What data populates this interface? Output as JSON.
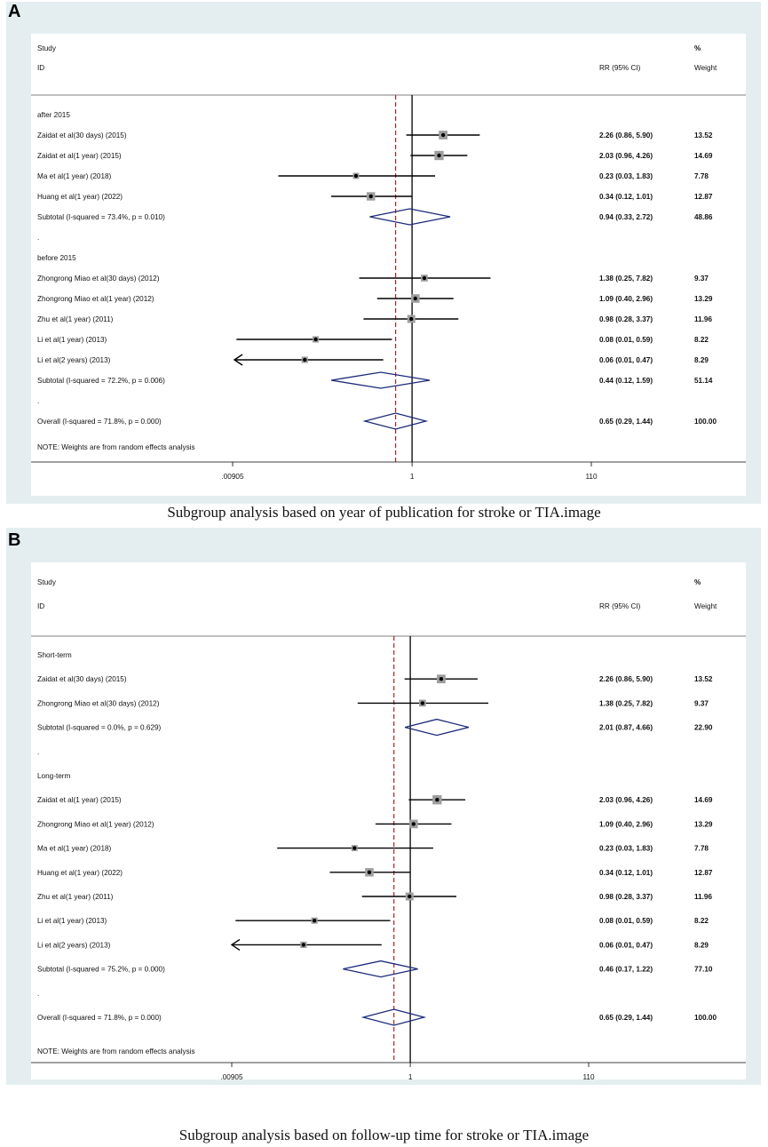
{
  "chart_data": [
    {
      "type": "forest",
      "panel_label": "A",
      "caption": "Subgroup analysis based on year of publication for stroke or TIA.image",
      "header": {
        "study": "Study",
        "id": "ID",
        "rr": "RR (95% CI)",
        "pct": "%",
        "weight": "Weight"
      },
      "x_scale": "log",
      "x_ticks": [
        {
          "value": 0.00905,
          "label": ".00905"
        },
        {
          "value": 1,
          "label": "1"
        },
        {
          "value": 110,
          "label": "110"
        }
      ],
      "null_line": 1,
      "overall_line": 0.65,
      "note": "NOTE: Weights are from random effects analysis",
      "rows": [
        {
          "kind": "group",
          "label": "after 2015"
        },
        {
          "kind": "study",
          "label": "Zaidat et al(30 days)  (2015)",
          "rr": 2.26,
          "lo": 0.86,
          "hi": 5.9,
          "ci_text": "2.26 (0.86, 5.90)",
          "weight": "13.52"
        },
        {
          "kind": "study",
          "label": "Zaidat et al(1 year)  (2015)",
          "rr": 2.03,
          "lo": 0.96,
          "hi": 4.26,
          "ci_text": "2.03 (0.96, 4.26)",
          "weight": "14.69"
        },
        {
          "kind": "study",
          "label": "Ma et al(1 year)  (2018)",
          "rr": 0.23,
          "lo": 0.03,
          "hi": 1.83,
          "ci_text": "0.23 (0.03, 1.83)",
          "weight": "7.78"
        },
        {
          "kind": "study",
          "label": "Huang et al(1 year)  (2022)",
          "rr": 0.34,
          "lo": 0.12,
          "hi": 1.01,
          "ci_text": "0.34 (0.12, 1.01)",
          "weight": "12.87"
        },
        {
          "kind": "subtotal",
          "label": "Subtotal  (I-squared = 73.4%, p = 0.010)",
          "rr": 0.94,
          "lo": 0.33,
          "hi": 2.72,
          "ci_text": "0.94 (0.33, 2.72)",
          "weight": "48.86"
        },
        {
          "kind": "dot",
          "label": "."
        },
        {
          "kind": "group",
          "label": "before 2015"
        },
        {
          "kind": "study",
          "label": "Zhongrong Miao et al(30 days)  (2012)",
          "rr": 1.38,
          "lo": 0.25,
          "hi": 7.82,
          "ci_text": "1.38 (0.25, 7.82)",
          "weight": "9.37"
        },
        {
          "kind": "study",
          "label": "Zhongrong Miao et al(1 year)  (2012)",
          "rr": 1.09,
          "lo": 0.4,
          "hi": 2.96,
          "ci_text": "1.09 (0.40, 2.96)",
          "weight": "13.29"
        },
        {
          "kind": "study",
          "label": "Zhu et al(1 year)  (2011)",
          "rr": 0.98,
          "lo": 0.28,
          "hi": 3.37,
          "ci_text": "0.98 (0.28, 3.37)",
          "weight": "11.96"
        },
        {
          "kind": "study",
          "label": "Li et al(1 year)  (2013)",
          "rr": 0.08,
          "lo": 0.01,
          "hi": 0.59,
          "ci_text": "0.08 (0.01, 0.59)",
          "weight": "8.22"
        },
        {
          "kind": "study",
          "label": "Li et al(2 years)  (2013)",
          "rr": 0.06,
          "lo": 0.01,
          "hi": 0.47,
          "ci_text": "0.06 (0.01, 0.47)",
          "weight": "8.29",
          "arrow_left": true
        },
        {
          "kind": "subtotal",
          "label": "Subtotal  (I-squared = 72.2%, p = 0.006)",
          "rr": 0.44,
          "lo": 0.12,
          "hi": 1.59,
          "ci_text": "0.44 (0.12, 1.59)",
          "weight": "51.14"
        },
        {
          "kind": "dot",
          "label": "."
        },
        {
          "kind": "overall",
          "label": "Overall  (I-squared = 71.8%, p = 0.000)",
          "rr": 0.65,
          "lo": 0.29,
          "hi": 1.44,
          "ci_text": "0.65 (0.29, 1.44)",
          "weight": "100.00"
        }
      ]
    },
    {
      "type": "forest",
      "panel_label": "B",
      "caption": "Subgroup analysis based on follow-up time for stroke or TIA.image",
      "header": {
        "study": "Study",
        "id": "ID",
        "rr": "RR (95% CI)",
        "pct": "%",
        "weight": "Weight"
      },
      "x_scale": "log",
      "x_ticks": [
        {
          "value": 0.00905,
          "label": ".00905"
        },
        {
          "value": 1,
          "label": "1"
        },
        {
          "value": 110,
          "label": "110"
        }
      ],
      "null_line": 1,
      "overall_line": 0.65,
      "note": "NOTE: Weights are from random effects analysis",
      "rows": [
        {
          "kind": "group",
          "label": "Short-term"
        },
        {
          "kind": "study",
          "label": "Zaidat et al(30 days)  (2015)",
          "rr": 2.26,
          "lo": 0.86,
          "hi": 5.9,
          "ci_text": "2.26 (0.86, 5.90)",
          "weight": "13.52"
        },
        {
          "kind": "study",
          "label": "Zhongrong Miao et al(30 days)  (2012)",
          "rr": 1.38,
          "lo": 0.25,
          "hi": 7.82,
          "ci_text": "1.38 (0.25, 7.82)",
          "weight": "9.37"
        },
        {
          "kind": "subtotal",
          "label": "Subtotal  (I-squared = 0.0%, p = 0.629)",
          "rr": 2.01,
          "lo": 0.87,
          "hi": 4.66,
          "ci_text": "2.01 (0.87, 4.66)",
          "weight": "22.90"
        },
        {
          "kind": "dot",
          "label": "."
        },
        {
          "kind": "group",
          "label": "Long-term"
        },
        {
          "kind": "study",
          "label": "Zaidat et al(1 year)  (2015)",
          "rr": 2.03,
          "lo": 0.96,
          "hi": 4.26,
          "ci_text": "2.03 (0.96, 4.26)",
          "weight": "14.69"
        },
        {
          "kind": "study",
          "label": "Zhongrong Miao et al(1 year)  (2012)",
          "rr": 1.09,
          "lo": 0.4,
          "hi": 2.96,
          "ci_text": "1.09 (0.40, 2.96)",
          "weight": "13.29"
        },
        {
          "kind": "study",
          "label": "Ma et al(1 year)  (2018)",
          "rr": 0.23,
          "lo": 0.03,
          "hi": 1.83,
          "ci_text": "0.23 (0.03, 1.83)",
          "weight": "7.78"
        },
        {
          "kind": "study",
          "label": "Huang et al(1 year)  (2022)",
          "rr": 0.34,
          "lo": 0.12,
          "hi": 1.01,
          "ci_text": "0.34 (0.12, 1.01)",
          "weight": "12.87"
        },
        {
          "kind": "study",
          "label": "Zhu et al(1 year)  (2011)",
          "rr": 0.98,
          "lo": 0.28,
          "hi": 3.37,
          "ci_text": "0.98 (0.28, 3.37)",
          "weight": "11.96"
        },
        {
          "kind": "study",
          "label": "Li et al(1 year)  (2013)",
          "rr": 0.08,
          "lo": 0.01,
          "hi": 0.59,
          "ci_text": "0.08 (0.01, 0.59)",
          "weight": "8.22"
        },
        {
          "kind": "study",
          "label": "Li et al(2 years)  (2013)",
          "rr": 0.06,
          "lo": 0.01,
          "hi": 0.47,
          "ci_text": "0.06 (0.01, 0.47)",
          "weight": "8.29",
          "arrow_left": true
        },
        {
          "kind": "subtotal",
          "label": "Subtotal  (I-squared = 75.2%, p = 0.000)",
          "rr": 0.46,
          "lo": 0.17,
          "hi": 1.22,
          "ci_text": "0.46 (0.17, 1.22)",
          "weight": "77.10"
        },
        {
          "kind": "dot",
          "label": "."
        },
        {
          "kind": "overall",
          "label": "Overall  (I-squared = 71.8%, p = 0.000)",
          "rr": 0.65,
          "lo": 0.29,
          "hi": 1.44,
          "ci_text": "0.65 (0.29, 1.44)",
          "weight": "100.00"
        }
      ]
    }
  ],
  "colors": {
    "panel_background": "#e4eef0",
    "diamond": "#1b2a7a",
    "overall_dashed_line": "#b22222",
    "study_box": "#9e9e9e"
  }
}
